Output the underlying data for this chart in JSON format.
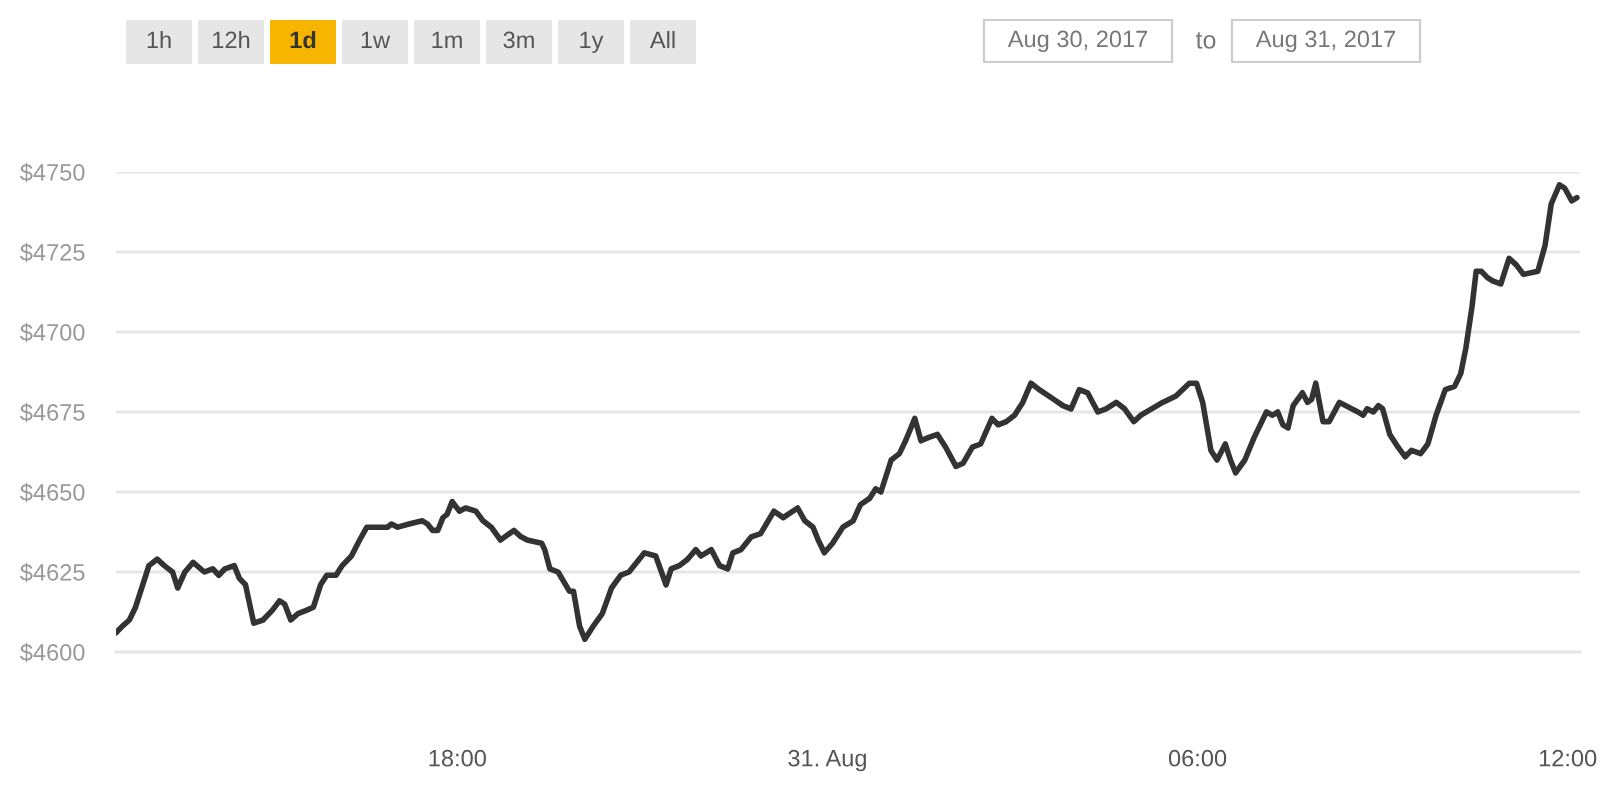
{
  "chart_data": {
    "type": "line",
    "x": [
      "2017-08-30T12:28",
      "2017-08-30T12:34",
      "2017-08-30T12:41",
      "2017-08-30T12:47",
      "2017-08-30T12:54",
      "2017-08-30T13:00",
      "2017-08-30T13:08",
      "2017-08-30T13:15",
      "2017-08-30T13:23",
      "2017-08-30T13:28",
      "2017-08-30T13:35",
      "2017-08-30T13:43",
      "2017-08-30T13:54",
      "2017-08-30T14:02",
      "2017-08-30T14:08",
      "2017-08-30T14:14",
      "2017-08-30T14:23",
      "2017-08-30T14:28",
      "2017-08-30T14:34",
      "2017-08-30T14:42",
      "2017-08-30T14:51",
      "2017-08-30T15:00",
      "2017-08-30T15:07",
      "2017-08-30T15:12",
      "2017-08-30T15:18",
      "2017-08-30T15:25",
      "2017-08-30T15:33",
      "2017-08-30T15:40",
      "2017-08-30T15:47",
      "2017-08-30T15:53",
      "2017-08-30T16:02",
      "2017-08-30T16:08",
      "2017-08-30T16:17",
      "2017-08-30T16:25",
      "2017-08-30T16:32",
      "2017-08-30T16:52",
      "2017-08-30T16:56",
      "2017-08-30T17:02",
      "2017-08-30T17:13",
      "2017-08-30T17:26",
      "2017-08-30T17:31",
      "2017-08-30T17:36",
      "2017-08-30T17:41",
      "2017-08-30T17:46",
      "2017-08-30T17:50",
      "2017-08-30T17:55",
      "2017-08-30T18:02",
      "2017-08-30T18:08",
      "2017-08-30T18:18",
      "2017-08-30T18:25",
      "2017-08-30T18:33",
      "2017-08-30T18:42",
      "2017-08-30T18:55",
      "2017-08-30T19:02",
      "2017-08-30T19:08",
      "2017-08-30T19:22",
      "2017-08-30T19:25",
      "2017-08-30T19:30",
      "2017-08-30T19:38",
      "2017-08-30T19:49",
      "2017-08-30T19:53",
      "2017-08-30T19:59",
      "2017-08-30T20:04",
      "2017-08-30T20:12",
      "2017-08-30T20:21",
      "2017-08-30T20:30",
      "2017-08-30T20:39",
      "2017-08-30T20:47",
      "2017-08-30T21:02",
      "2017-08-30T21:13",
      "2017-08-30T21:23",
      "2017-08-30T21:28",
      "2017-08-30T21:36",
      "2017-08-30T21:44",
      "2017-08-30T21:52",
      "2017-08-30T21:57",
      "2017-08-30T22:07",
      "2017-08-30T22:15",
      "2017-08-30T22:23",
      "2017-08-30T22:28",
      "2017-08-30T22:36",
      "2017-08-30T22:46",
      "2017-08-30T22:55",
      "2017-08-30T23:08",
      "2017-08-30T23:17",
      "2017-08-30T23:31",
      "2017-08-30T23:38",
      "2017-08-30T23:46",
      "2017-08-30T23:51",
      "2017-08-30T23:57",
      "2017-08-31T00:05",
      "2017-08-31T00:15",
      "2017-08-31T00:25",
      "2017-08-31T00:32",
      "2017-08-31T00:41",
      "2017-08-31T00:47",
      "2017-08-31T00:52",
      "2017-08-31T01:02",
      "2017-08-31T01:10",
      "2017-08-31T01:16",
      "2017-08-31T01:25",
      "2017-08-31T01:31",
      "2017-08-31T01:38",
      "2017-08-31T01:47",
      "2017-08-31T01:55",
      "2017-08-31T02:05",
      "2017-08-31T02:12",
      "2017-08-31T02:21",
      "2017-08-31T02:29",
      "2017-08-31T02:40",
      "2017-08-31T02:46",
      "2017-08-31T02:54",
      "2017-08-31T03:02",
      "2017-08-31T03:10",
      "2017-08-31T03:18",
      "2017-08-31T03:26",
      "2017-08-31T03:40",
      "2017-08-31T03:49",
      "2017-08-31T03:57",
      "2017-08-31T04:05",
      "2017-08-31T04:13",
      "2017-08-31T04:23",
      "2017-08-31T04:31",
      "2017-08-31T04:41",
      "2017-08-31T04:49",
      "2017-08-31T04:58",
      "2017-08-31T05:05",
      "2017-08-31T05:26",
      "2017-08-31T05:39",
      "2017-08-31T05:52",
      "2017-08-31T05:59",
      "2017-08-31T06:05",
      "2017-08-31T06:13",
      "2017-08-31T06:19",
      "2017-08-31T06:27",
      "2017-08-31T06:32",
      "2017-08-31T06:37",
      "2017-08-31T06:46",
      "2017-08-31T06:55",
      "2017-08-31T07:07",
      "2017-08-31T07:13",
      "2017-08-31T07:18",
      "2017-08-31T07:23",
      "2017-08-31T07:28",
      "2017-08-31T07:33",
      "2017-08-31T07:42",
      "2017-08-31T07:47",
      "2017-08-31T07:51",
      "2017-08-31T07:55",
      "2017-08-31T08:02",
      "2017-08-31T08:08",
      "2017-08-31T08:18",
      "2017-08-31T08:36",
      "2017-08-31T08:41",
      "2017-08-31T08:45",
      "2017-08-31T08:51",
      "2017-08-31T08:56",
      "2017-08-31T09:00",
      "2017-08-31T09:07",
      "2017-08-31T09:15",
      "2017-08-31T09:22",
      "2017-08-31T09:28",
      "2017-08-31T09:37",
      "2017-08-31T09:44",
      "2017-08-31T09:52",
      "2017-08-31T10:01",
      "2017-08-31T10:10",
      "2017-08-31T10:16",
      "2017-08-31T10:21",
      "2017-08-31T10:27",
      "2017-08-31T10:31",
      "2017-08-31T10:36",
      "2017-08-31T10:42",
      "2017-08-31T10:47",
      "2017-08-31T10:55",
      "2017-08-31T11:03",
      "2017-08-31T11:10",
      "2017-08-31T11:17",
      "2017-08-31T11:31",
      "2017-08-31T11:38",
      "2017-08-31T11:44",
      "2017-08-31T11:52",
      "2017-08-31T11:57",
      "2017-08-31T12:04",
      "2017-08-31T12:09"
    ],
    "series": [
      {
        "color": "#333333",
        "values": [
          4606,
          4608,
          4610,
          4614,
          4621,
          4627,
          4629,
          4627,
          4625,
          4620,
          4625,
          4628,
          4625,
          4626,
          4624,
          4626,
          4627,
          4623,
          4621,
          4609,
          4610,
          4613,
          4616,
          4615,
          4610,
          4612,
          4613,
          4614,
          4621,
          4624,
          4624,
          4627,
          4630,
          4635,
          4639,
          4639,
          4640,
          4639,
          4640,
          4641,
          4640,
          4638,
          4638,
          4642,
          4643,
          4647,
          4644,
          4645,
          4644,
          4641,
          4639,
          4635,
          4638,
          4636,
          4635,
          4634,
          4632,
          4626,
          4625,
          4619,
          4619,
          4608,
          4604,
          4608,
          4612,
          4620,
          4624,
          4625,
          4631,
          4630,
          4621,
          4626,
          4627,
          4629,
          4632,
          4630,
          4632,
          4627,
          4626,
          4631,
          4632,
          4636,
          4637,
          4644,
          4642,
          4645,
          4641,
          4639,
          4635,
          4631,
          4634,
          4639,
          4641,
          4646,
          4648,
          4651,
          4650,
          4660,
          4662,
          4666,
          4673,
          4666,
          4667,
          4668,
          4664,
          4658,
          4659,
          4664,
          4665,
          4673,
          4671,
          4672,
          4674,
          4678,
          4684,
          4682,
          4679,
          4677,
          4676,
          4682,
          4681,
          4675,
          4676,
          4678,
          4676,
          4672,
          4674,
          4678,
          4680,
          4684,
          4684,
          4678,
          4663,
          4660,
          4665,
          4660,
          4656,
          4660,
          4667,
          4675,
          4674,
          4675,
          4671,
          4670,
          4677,
          4681,
          4678,
          4679,
          4684,
          4672,
          4672,
          4678,
          4675,
          4674,
          4676,
          4675,
          4677,
          4676,
          4668,
          4664,
          4661,
          4663,
          4662,
          4665,
          4674,
          4682,
          4683,
          4687,
          4695,
          4708,
          4719,
          4719,
          4717,
          4716,
          4715,
          4723,
          4721,
          4718,
          4719,
          4727,
          4740,
          4746,
          4745,
          4741,
          4742
        ]
      }
    ],
    "xlim": [
      "2017-08-30T12:28",
      "2017-08-31T12:12"
    ],
    "xticks": [
      {
        "value": "2017-08-30T18:00",
        "label": "18:00"
      },
      {
        "value": "2017-08-31T00:00",
        "label": "31. Aug"
      },
      {
        "value": "2017-08-31T06:00",
        "label": "06:00"
      },
      {
        "value": "2017-08-31T12:00",
        "label": "12:00"
      }
    ],
    "ylim": [
      4600,
      4750
    ],
    "yticks": [
      {
        "value": 4600,
        "label": "$4600"
      },
      {
        "value": 4625,
        "label": "$4625"
      },
      {
        "value": 4650,
        "label": "$4650"
      },
      {
        "value": 4675,
        "label": "$4675"
      },
      {
        "value": 4700,
        "label": "$4700"
      },
      {
        "value": 4725,
        "label": "$4725"
      },
      {
        "value": 4750,
        "label": "$4750"
      }
    ],
    "grid": "y",
    "line_style": "solid",
    "annotations": [
      "1h",
      "12h",
      "1d",
      "1w",
      "1m",
      "3m",
      "1y",
      "All",
      "Aug 30, 2017",
      "to",
      "Aug 31, 2017"
    ]
  }
}
